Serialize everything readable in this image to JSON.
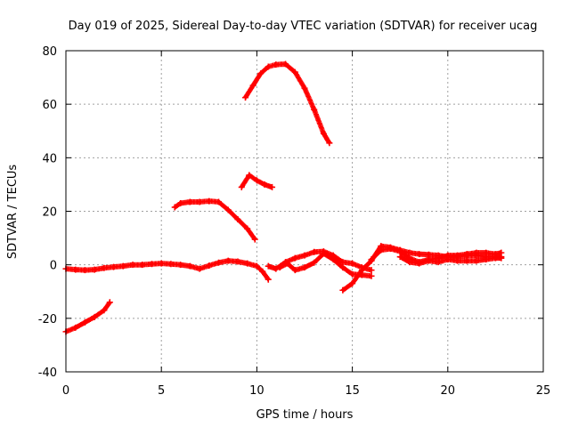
{
  "chart_data": {
    "type": "scatter",
    "title": "Day 019 of 2025, Sidereal Day-to-day VTEC variation (SDTVAR) for receiver ucag",
    "xlabel": "GPS time / hours",
    "ylabel": "SDTVAR / TECUs",
    "xlim": [
      0,
      25
    ],
    "ylim": [
      -40,
      80
    ],
    "xticks": [
      0,
      5,
      10,
      15,
      20,
      25
    ],
    "yticks": [
      -40,
      -20,
      0,
      20,
      40,
      60,
      80
    ],
    "xtick_labels": [
      "0",
      "5",
      "10",
      "15",
      "20",
      "25"
    ],
    "ytick_labels": [
      "-40",
      "-20",
      "0",
      "20",
      "40",
      "60",
      "80"
    ],
    "grid": true,
    "legend": "none",
    "marker": "plus",
    "series": [
      {
        "name": "track-near-zero",
        "color": "#ff0000",
        "points": [
          [
            0,
            -1.5
          ],
          [
            0.5,
            -1.8
          ],
          [
            1,
            -2
          ],
          [
            1.5,
            -1.8
          ],
          [
            2,
            -1.2
          ],
          [
            2.5,
            -0.8
          ],
          [
            3,
            -0.5
          ],
          [
            3.5,
            0
          ],
          [
            4,
            0
          ],
          [
            4.5,
            0.3
          ],
          [
            5,
            0.5
          ],
          [
            5.5,
            0.3
          ],
          [
            6,
            0
          ],
          [
            6.5,
            -0.5
          ],
          [
            7,
            -1.5
          ],
          [
            7.5,
            -0.3
          ],
          [
            8,
            0.8
          ],
          [
            8.5,
            1.5
          ],
          [
            9,
            1.2
          ],
          [
            9.5,
            0.5
          ],
          [
            10,
            -0.5
          ],
          [
            10.3,
            -2.5
          ],
          [
            10.6,
            -5.5
          ]
        ]
      },
      {
        "name": "track-negative-start",
        "color": "#ff0000",
        "points": [
          [
            0,
            -25
          ],
          [
            0.5,
            -23.5
          ],
          [
            1,
            -21.5
          ],
          [
            1.5,
            -19.5
          ],
          [
            2,
            -17
          ],
          [
            2.3,
            -14
          ]
        ]
      },
      {
        "name": "track-around-22",
        "color": "#ff0000",
        "points": [
          [
            5.7,
            21.5
          ],
          [
            6,
            23
          ],
          [
            6.5,
            23.5
          ],
          [
            7,
            23.5
          ],
          [
            7.5,
            23.8
          ],
          [
            8,
            23.5
          ],
          [
            8.5,
            20.5
          ],
          [
            9,
            17
          ],
          [
            9.5,
            13.5
          ],
          [
            9.9,
            9.5
          ]
        ]
      },
      {
        "name": "track-around-30",
        "color": "#ff0000",
        "points": [
          [
            9.2,
            29
          ],
          [
            9.6,
            33.5
          ],
          [
            10,
            31.5
          ],
          [
            10.4,
            30
          ],
          [
            10.8,
            29
          ]
        ]
      },
      {
        "name": "track-peak-75",
        "color": "#ff0000",
        "points": [
          [
            9.4,
            62.5
          ],
          [
            9.8,
            67
          ],
          [
            10.2,
            71.5
          ],
          [
            10.6,
            74
          ],
          [
            11,
            74.8
          ],
          [
            11.5,
            75
          ],
          [
            12,
            72
          ],
          [
            12.5,
            66
          ],
          [
            13,
            58
          ],
          [
            13.5,
            49
          ],
          [
            13.8,
            45.5
          ]
        ]
      },
      {
        "name": "track-mid-1",
        "color": "#ff0000",
        "points": [
          [
            10.6,
            -0.5
          ],
          [
            11,
            -1.5
          ],
          [
            11.5,
            1
          ],
          [
            12,
            2.5
          ],
          [
            12.5,
            3.5
          ],
          [
            13,
            4.8
          ],
          [
            13.5,
            5
          ],
          [
            14,
            3.5
          ],
          [
            14.5,
            1
          ],
          [
            15,
            0.5
          ],
          [
            15.5,
            -1
          ],
          [
            16,
            -2
          ]
        ]
      },
      {
        "name": "track-mid-2",
        "color": "#ff0000",
        "points": [
          [
            11.2,
            -1
          ],
          [
            11.6,
            0.5
          ],
          [
            12,
            -2
          ],
          [
            12.5,
            -1
          ],
          [
            13,
            0.8
          ],
          [
            13.5,
            4.2
          ],
          [
            14,
            2
          ],
          [
            14.5,
            -1
          ],
          [
            15,
            -3.5
          ],
          [
            15.5,
            -3.8
          ],
          [
            16,
            -4.2
          ]
        ]
      },
      {
        "name": "track-dip",
        "color": "#ff0000",
        "points": [
          [
            14.5,
            -9.5
          ],
          [
            15,
            -7
          ],
          [
            15.5,
            -2
          ],
          [
            16,
            1.5
          ],
          [
            16.5,
            7
          ],
          [
            17,
            6.5
          ],
          [
            17.5,
            5.5
          ],
          [
            18,
            4.5
          ],
          [
            18.5,
            4
          ],
          [
            19,
            3.8
          ],
          [
            19.5,
            3.5
          ],
          [
            20,
            3
          ],
          [
            20.5,
            3
          ],
          [
            21,
            3.5
          ],
          [
            21.5,
            3.5
          ],
          [
            22,
            3
          ],
          [
            22.5,
            3
          ],
          [
            22.8,
            3
          ]
        ]
      },
      {
        "name": "track-upper-tail",
        "color": "#ff0000",
        "points": [
          [
            16,
            2
          ],
          [
            16.5,
            5.5
          ],
          [
            17,
            6
          ],
          [
            17.5,
            5
          ],
          [
            18,
            2.5
          ],
          [
            18.5,
            1
          ],
          [
            19,
            2
          ],
          [
            19.5,
            2.5
          ],
          [
            20,
            3.5
          ],
          [
            20.5,
            3.5
          ],
          [
            21,
            4
          ],
          [
            21.5,
            4.5
          ],
          [
            22,
            4.5
          ],
          [
            22.5,
            4
          ],
          [
            22.8,
            4.5
          ]
        ]
      },
      {
        "name": "track-lower-tail",
        "color": "#ff0000",
        "points": [
          [
            17.5,
            3
          ],
          [
            18,
            1
          ],
          [
            18.5,
            0.5
          ],
          [
            19,
            1.5
          ],
          [
            19.5,
            1
          ],
          [
            20,
            2
          ],
          [
            20.5,
            1.5
          ],
          [
            21,
            1.5
          ],
          [
            21.5,
            1.5
          ],
          [
            22,
            2
          ],
          [
            22.5,
            2.5
          ],
          [
            22.8,
            2.5
          ]
        ]
      }
    ]
  }
}
